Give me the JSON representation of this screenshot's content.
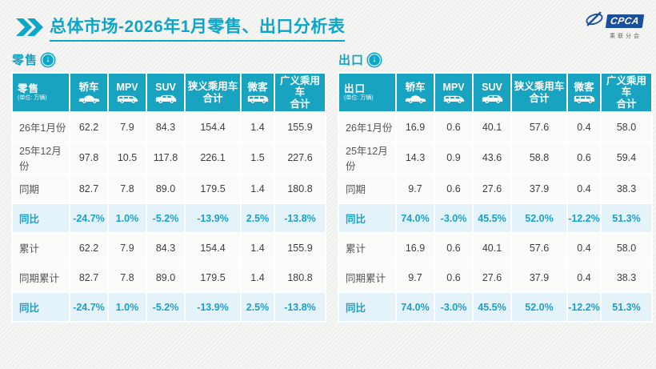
{
  "title": {
    "bold": "总体市场",
    "rest": "-2026年1月零售、出口分析表"
  },
  "logo": {
    "name": "CPCA",
    "subtitle": "乘联分会"
  },
  "watermark_text": "CPCA",
  "colors": {
    "accent_teal": "#0ba6c8",
    "table_header_teal": "#18a4c0",
    "highlight_row_bg": "#e4f2f9",
    "highlight_text": "#1ba0c8",
    "logo_blue": "#1a4f9c",
    "page_bg": "#f2f2f0"
  },
  "tables": [
    {
      "id": "retail",
      "section_label": "零售",
      "section_icon": "circle-down-arrow-icon",
      "corner_label": "零售",
      "unit": "(单位: 万辆)",
      "columns": [
        {
          "label": "轿车",
          "icon": "sedan-icon"
        },
        {
          "label": "MPV",
          "icon": "mpv-icon"
        },
        {
          "label": "SUV",
          "icon": "suv-icon"
        },
        {
          "label": "狭义乘用车",
          "label2": "合计",
          "icon": null
        },
        {
          "label": "微客",
          "icon": "microvan-icon"
        },
        {
          "label": "广义乘用车",
          "label2": "合计",
          "icon": null
        }
      ],
      "rows": [
        {
          "label": "26年1月份",
          "highlight": false,
          "values": [
            "62.2",
            "7.9",
            "84.3",
            "154.4",
            "1.4",
            "155.9"
          ]
        },
        {
          "label": "25年12月份",
          "highlight": false,
          "values": [
            "97.8",
            "10.5",
            "117.8",
            "226.1",
            "1.5",
            "227.6"
          ]
        },
        {
          "label": "同期",
          "highlight": false,
          "values": [
            "82.7",
            "7.8",
            "89.0",
            "179.5",
            "1.4",
            "180.8"
          ]
        },
        {
          "label": "同比",
          "highlight": true,
          "values": [
            "-24.7%",
            "1.0%",
            "-5.2%",
            "-13.9%",
            "2.5%",
            "-13.8%"
          ]
        },
        {
          "label": "累计",
          "highlight": false,
          "values": [
            "62.2",
            "7.9",
            "84.3",
            "154.4",
            "1.4",
            "155.9"
          ]
        },
        {
          "label": "同期累计",
          "highlight": false,
          "values": [
            "82.7",
            "7.8",
            "89.0",
            "179.5",
            "1.4",
            "180.8"
          ]
        },
        {
          "label": "同比",
          "highlight": true,
          "values": [
            "-24.7%",
            "1.0%",
            "-5.2%",
            "-13.9%",
            "2.5%",
            "-13.8%"
          ]
        }
      ]
    },
    {
      "id": "export",
      "section_label": "出口",
      "section_icon": "circle-down-arrow-icon",
      "corner_label": "出口",
      "unit": "(单位: 万辆)",
      "columns": [
        {
          "label": "轿车",
          "icon": "sedan-icon"
        },
        {
          "label": "MPV",
          "icon": "mpv-icon"
        },
        {
          "label": "SUV",
          "icon": "suv-icon"
        },
        {
          "label": "狭义乘用车",
          "label2": "合计",
          "icon": null
        },
        {
          "label": "微客",
          "icon": "microvan-icon"
        },
        {
          "label": "广义乘用车",
          "label2": "合计",
          "icon": null
        }
      ],
      "rows": [
        {
          "label": "26年1月份",
          "highlight": false,
          "values": [
            "16.9",
            "0.6",
            "40.1",
            "57.6",
            "0.4",
            "58.0"
          ]
        },
        {
          "label": "25年12月份",
          "highlight": false,
          "values": [
            "14.3",
            "0.9",
            "43.6",
            "58.8",
            "0.6",
            "59.4"
          ]
        },
        {
          "label": "同期",
          "highlight": false,
          "values": [
            "9.7",
            "0.6",
            "27.6",
            "37.9",
            "0.4",
            "38.3"
          ]
        },
        {
          "label": "同比",
          "highlight": true,
          "values": [
            "74.0%",
            "-3.0%",
            "45.5%",
            "52.0%",
            "-12.2%",
            "51.3%"
          ]
        },
        {
          "label": "累计",
          "highlight": false,
          "values": [
            "16.9",
            "0.6",
            "40.1",
            "57.6",
            "0.4",
            "58.0"
          ]
        },
        {
          "label": "同期累计",
          "highlight": false,
          "values": [
            "9.7",
            "0.6",
            "27.6",
            "37.9",
            "0.4",
            "38.3"
          ]
        },
        {
          "label": "同比",
          "highlight": true,
          "values": [
            "74.0%",
            "-3.0%",
            "45.5%",
            "52.0%",
            "-12.2%",
            "51.3%"
          ]
        }
      ]
    }
  ],
  "chart_data": {
    "type": "table",
    "title": "总体市场-2026年1月零售、出口分析表",
    "tables": [
      {
        "name": "零售 (单位: 万辆)",
        "columns": [
          "轿车",
          "MPV",
          "SUV",
          "狭义乘用车合计",
          "微客",
          "广义乘用车合计"
        ],
        "rows": {
          "26年1月份": [
            62.2,
            7.9,
            84.3,
            154.4,
            1.4,
            155.9
          ],
          "25年12月份": [
            97.8,
            10.5,
            117.8,
            226.1,
            1.5,
            227.6
          ],
          "同期": [
            82.7,
            7.8,
            89.0,
            179.5,
            1.4,
            180.8
          ],
          "同比": [
            "-24.7%",
            "1.0%",
            "-5.2%",
            "-13.9%",
            "2.5%",
            "-13.8%"
          ],
          "累计": [
            62.2,
            7.9,
            84.3,
            154.4,
            1.4,
            155.9
          ],
          "同期累计": [
            82.7,
            7.8,
            89.0,
            179.5,
            1.4,
            180.8
          ],
          "同比(累计)": [
            "-24.7%",
            "1.0%",
            "-5.2%",
            "-13.9%",
            "2.5%",
            "-13.8%"
          ]
        }
      },
      {
        "name": "出口 (单位: 万辆)",
        "columns": [
          "轿车",
          "MPV",
          "SUV",
          "狭义乘用车合计",
          "微客",
          "广义乘用车合计"
        ],
        "rows": {
          "26年1月份": [
            16.9,
            0.6,
            40.1,
            57.6,
            0.4,
            58.0
          ],
          "25年12月份": [
            14.3,
            0.9,
            43.6,
            58.8,
            0.6,
            59.4
          ],
          "同期": [
            9.7,
            0.6,
            27.6,
            37.9,
            0.4,
            38.3
          ],
          "同比": [
            "74.0%",
            "-3.0%",
            "45.5%",
            "52.0%",
            "-12.2%",
            "51.3%"
          ],
          "累计": [
            16.9,
            0.6,
            40.1,
            57.6,
            0.4,
            58.0
          ],
          "同期累计": [
            9.7,
            0.6,
            27.6,
            37.9,
            0.4,
            38.3
          ],
          "同比(累计)": [
            "74.0%",
            "-3.0%",
            "45.5%",
            "52.0%",
            "-12.2%",
            "51.3%"
          ]
        }
      }
    ]
  }
}
